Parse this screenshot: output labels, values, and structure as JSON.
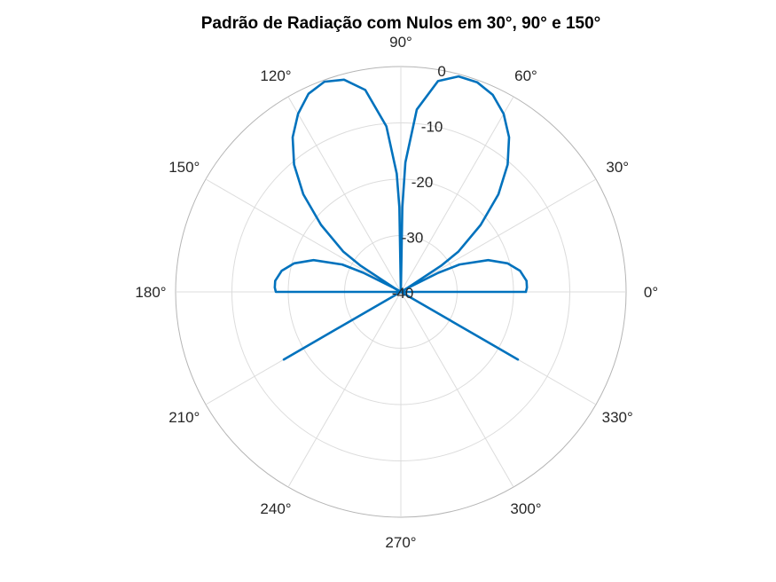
{
  "chart_data": {
    "type": "polar-line",
    "title": "Padrão de Radiação com Nulos em 30°, 90° e 150°",
    "angle_unit": "degrees",
    "r_unit": "dB",
    "r_lim": [
      -40,
      0
    ],
    "r_ticks": [
      0,
      -10,
      -20,
      -30,
      -40
    ],
    "r_tick_labels": [
      "0",
      "-10",
      "-20",
      "-30",
      "-40"
    ],
    "theta_ticks": [
      0,
      30,
      60,
      90,
      120,
      150,
      180,
      210,
      240,
      270,
      300,
      330
    ],
    "theta_tick_labels": [
      "0°",
      "30°",
      "60°",
      "90°",
      "120°",
      "150°",
      "180°",
      "210°",
      "240°",
      "270°",
      "300°",
      "330°"
    ],
    "grid": true,
    "legend": "none",
    "series_color": "#0072BD",
    "series": [
      {
        "theta": [
          0,
          2,
          5,
          10,
          15,
          20,
          25,
          27,
          29,
          30,
          31,
          33,
          35,
          40,
          45,
          50,
          55,
          60,
          65,
          70,
          75,
          80,
          85,
          88,
          89,
          90,
          91,
          92,
          95,
          100,
          105,
          110,
          115,
          120,
          125,
          130,
          135,
          140,
          145,
          147,
          149,
          150,
          151,
          153,
          155,
          160,
          165,
          170,
          175,
          178,
          180,
          182,
          185,
          190,
          200,
          210,
          220,
          230,
          240,
          250,
          260,
          270,
          280,
          290,
          300,
          310,
          320,
          330,
          340,
          350,
          355,
          358,
          360
        ],
        "r": [
          -17.8,
          -17.6,
          -17.6,
          -18.5,
          -20.4,
          -23.5,
          -28.5,
          -32.5,
          -38.5,
          -40,
          -38.5,
          -31.5,
          -27.5,
          -21.5,
          -15.5,
          -10.5,
          -6.5,
          -3.5,
          -1.4,
          -0.4,
          -0.4,
          -2.0,
          -7.5,
          -17.0,
          -25.0,
          -40,
          -25.0,
          -19.0,
          -10.5,
          -3.6,
          -1.0,
          -0.3,
          -1.2,
          -3.5,
          -6.5,
          -10.5,
          -15.5,
          -21.5,
          -27.5,
          -31.5,
          -38.5,
          -40,
          -38.5,
          -32.5,
          -28.5,
          -23.5,
          -20.4,
          -18.5,
          -17.6,
          -17.6,
          -17.8,
          -40,
          -40,
          -40,
          -40,
          -40,
          -40,
          -40,
          -40,
          -40,
          -40,
          -40,
          -40,
          -40,
          -40,
          -40,
          -40,
          -40,
          -40,
          -40,
          -40,
          -40,
          -17.8
        ]
      }
    ],
    "extra_lines": [
      {
        "theta": 210,
        "r": [
          -40,
          -16
        ]
      },
      {
        "theta": 330,
        "r": [
          -40,
          -16
        ]
      }
    ]
  }
}
